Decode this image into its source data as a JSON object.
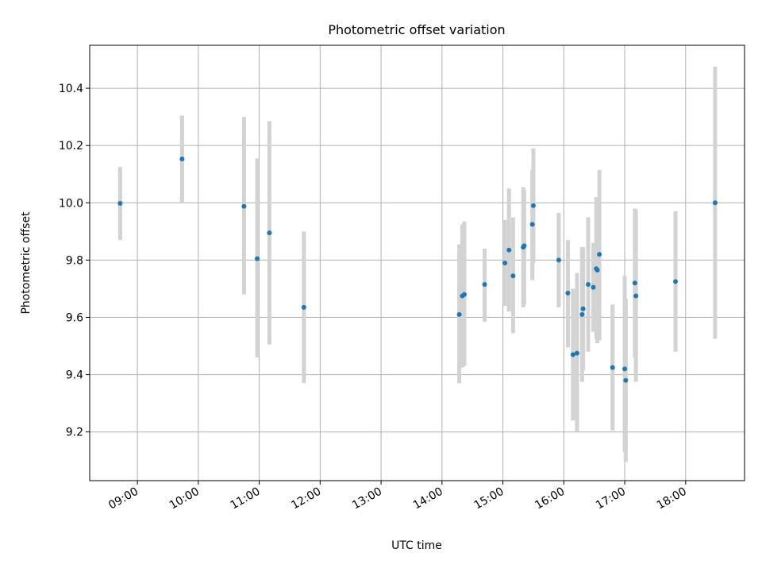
{
  "chart_data": {
    "type": "scatter",
    "title": "Photometric offset variation",
    "xlabel": "UTC time",
    "ylabel": "Photometric offset",
    "x_ticks": [
      "09:00",
      "10:00",
      "11:00",
      "12:00",
      "13:00",
      "14:00",
      "15:00",
      "16:00",
      "17:00",
      "18:00"
    ],
    "y_ticks": [
      "9.2",
      "9.4",
      "9.6",
      "9.8",
      "10.0",
      "10.2",
      "10.4"
    ],
    "xlim": [
      "08:13",
      "18:58"
    ],
    "ylim": [
      9.03,
      10.55
    ],
    "grid": true,
    "marker_color": "#1f77b4",
    "errorbar_color": "#d3d3d3",
    "points": [
      {
        "x": "08:43",
        "y": 9.998,
        "err_low": 9.87,
        "err_high": 10.125
      },
      {
        "x": "09:44",
        "y": 10.153,
        "err_low": 10.0,
        "err_high": 10.305
      },
      {
        "x": "10:45",
        "y": 9.988,
        "err_low": 9.68,
        "err_high": 10.3
      },
      {
        "x": "10:58",
        "y": 9.805,
        "err_low": 9.46,
        "err_high": 10.155
      },
      {
        "x": "11:10",
        "y": 9.895,
        "err_low": 9.505,
        "err_high": 10.285
      },
      {
        "x": "11:44",
        "y": 9.635,
        "err_low": 9.37,
        "err_high": 9.9
      },
      {
        "x": "14:17",
        "y": 9.61,
        "err_low": 9.37,
        "err_high": 9.855
      },
      {
        "x": "14:20",
        "y": 9.675,
        "err_low": 9.425,
        "err_high": 9.925
      },
      {
        "x": "14:22",
        "y": 9.68,
        "err_low": 9.43,
        "err_high": 9.935
      },
      {
        "x": "14:42",
        "y": 9.715,
        "err_low": 9.585,
        "err_high": 9.84
      },
      {
        "x": "15:02",
        "y": 9.79,
        "err_low": 9.64,
        "err_high": 9.94
      },
      {
        "x": "15:06",
        "y": 9.835,
        "err_low": 9.62,
        "err_high": 10.05
      },
      {
        "x": "15:10",
        "y": 9.745,
        "err_low": 9.545,
        "err_high": 9.95
      },
      {
        "x": "15:20",
        "y": 9.845,
        "err_low": 9.635,
        "err_high": 10.055
      },
      {
        "x": "15:21",
        "y": 9.85,
        "err_low": 9.645,
        "err_high": 10.045
      },
      {
        "x": "15:29",
        "y": 9.925,
        "err_low": 9.73,
        "err_high": 10.115
      },
      {
        "x": "15:30",
        "y": 9.99,
        "err_low": 9.79,
        "err_high": 10.19
      },
      {
        "x": "15:55",
        "y": 9.8,
        "err_low": 9.635,
        "err_high": 9.965
      },
      {
        "x": "16:04",
        "y": 9.685,
        "err_low": 9.495,
        "err_high": 9.87
      },
      {
        "x": "16:09",
        "y": 9.47,
        "err_low": 9.24,
        "err_high": 9.7
      },
      {
        "x": "16:13",
        "y": 9.475,
        "err_low": 9.2,
        "err_high": 9.755
      },
      {
        "x": "16:18",
        "y": 9.61,
        "err_low": 9.375,
        "err_high": 9.845
      },
      {
        "x": "16:19",
        "y": 9.63,
        "err_low": 9.415,
        "err_high": 9.845
      },
      {
        "x": "16:24",
        "y": 9.715,
        "err_low": 9.48,
        "err_high": 9.95
      },
      {
        "x": "16:29",
        "y": 9.705,
        "err_low": 9.55,
        "err_high": 9.86
      },
      {
        "x": "16:32",
        "y": 9.77,
        "err_low": 9.525,
        "err_high": 10.02
      },
      {
        "x": "16:33",
        "y": 9.765,
        "err_low": 9.51,
        "err_high": 10.005
      },
      {
        "x": "16:35",
        "y": 9.82,
        "err_low": 9.52,
        "err_high": 10.115
      },
      {
        "x": "16:48",
        "y": 9.425,
        "err_low": 9.205,
        "err_high": 9.645
      },
      {
        "x": "17:00",
        "y": 9.42,
        "err_low": 9.13,
        "err_high": 9.745
      },
      {
        "x": "17:01",
        "y": 9.38,
        "err_low": 9.095,
        "err_high": 9.665
      },
      {
        "x": "17:10",
        "y": 9.72,
        "err_low": 9.46,
        "err_high": 9.98
      },
      {
        "x": "17:11",
        "y": 9.675,
        "err_low": 9.375,
        "err_high": 9.975
      },
      {
        "x": "17:50",
        "y": 9.725,
        "err_low": 9.48,
        "err_high": 9.97
      },
      {
        "x": "18:29",
        "y": 10.0,
        "err_low": 9.525,
        "err_high": 10.475
      }
    ]
  }
}
